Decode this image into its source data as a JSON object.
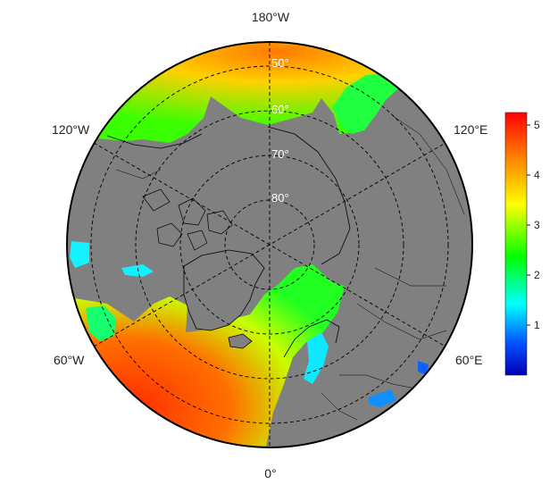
{
  "map": {
    "projection": "north-polar-stereographic",
    "longitude_labels": {
      "top": "180°W",
      "bottom": "0°",
      "upper_left": "120°W",
      "upper_right": "120°E",
      "lower_left": "60°W",
      "lower_right": "60°E"
    },
    "latitude_labels": [
      "50°",
      "60°",
      "70°",
      "80°"
    ],
    "land_color": "#808080",
    "coastline_color": "#000000",
    "graticule_style": "dashed"
  },
  "colorbar": {
    "ticks": [
      "1",
      "2",
      "3",
      "4",
      "5"
    ],
    "min": 0,
    "max": 5.25,
    "colors": [
      "#0000b4",
      "#0064ff",
      "#00ffff",
      "#00ff00",
      "#ffff00",
      "#ff8000",
      "#ff0000"
    ]
  }
}
